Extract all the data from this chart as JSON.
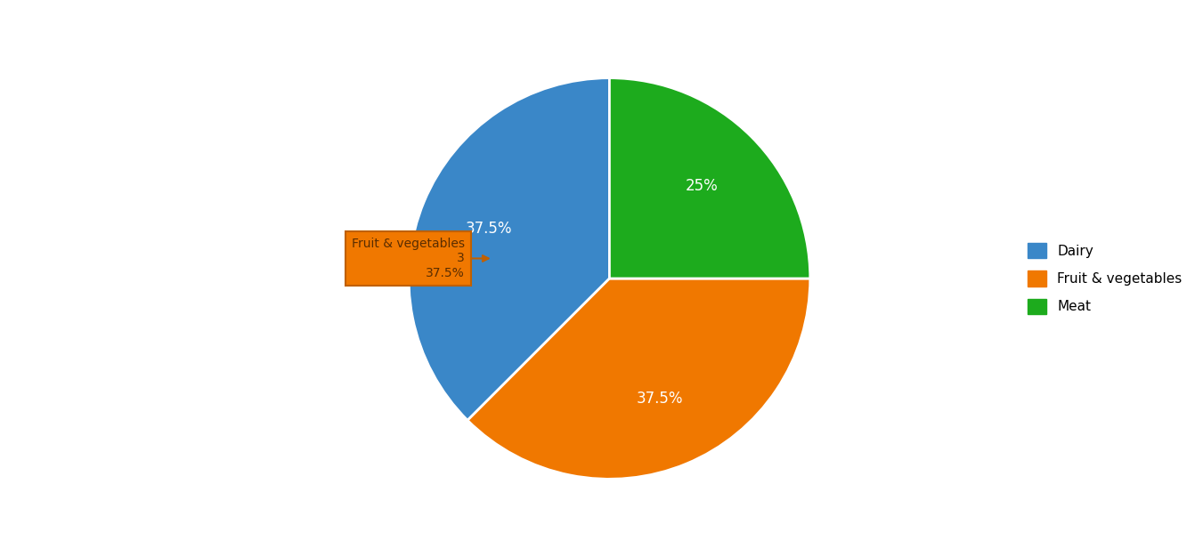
{
  "slices": [
    {
      "label": "Dairy",
      "value": 37.5,
      "color": "#3a87c8"
    },
    {
      "label": "Fruit & vegetables",
      "value": 37.5,
      "color": "#f07800"
    },
    {
      "label": "Meat",
      "value": 25.0,
      "color": "#1dab1d"
    }
  ],
  "startangle": 90,
  "tooltip": {
    "label": "Fruit & vegetables",
    "count": "3",
    "pct": "37.5%",
    "bg_color": "#f07800",
    "text_color": "#5a2d00",
    "border_color": "#c06000"
  },
  "legend_labels": [
    "Dairy",
    "Fruit & vegetables",
    "Meat"
  ],
  "legend_colors": [
    "#3a87c8",
    "#f07800",
    "#1dab1d"
  ],
  "bg_color": "#ffffff",
  "label_color": "#ffffff",
  "label_fontsize": 12,
  "pct_labels": [
    "37.5%",
    "37.5%",
    "25%"
  ]
}
